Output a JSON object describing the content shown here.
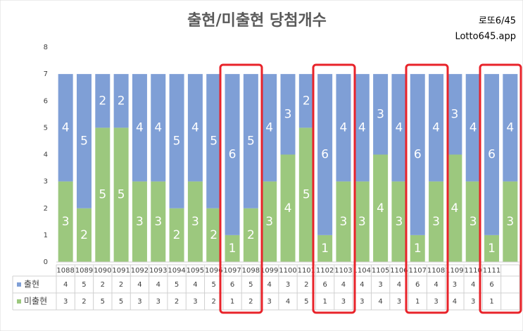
{
  "chart_data": {
    "type": "bar",
    "stacked": true,
    "title": "출현/미출현 당첨개수",
    "annotations": [
      "로또6/45",
      "Lotto645.app"
    ],
    "categories": [
      "1088",
      "1089",
      "1090",
      "1091",
      "1092",
      "1093",
      "1094",
      "1095",
      "1096",
      "1097",
      "1098",
      "1099",
      "1100",
      "1101",
      "1102",
      "1103",
      "1104",
      "1105",
      "1106",
      "1107",
      "1108",
      "1109",
      "1110",
      "1111",
      null
    ],
    "series": [
      {
        "name": "출현",
        "color": "#7f9fd6",
        "values": [
          4,
          5,
          2,
          2,
          4,
          4,
          5,
          4,
          5,
          6,
          5,
          4,
          3,
          2,
          6,
          4,
          4,
          3,
          4,
          6,
          4,
          3,
          4,
          6,
          4
        ]
      },
      {
        "name": "미출현",
        "color": "#9cc87e",
        "values": [
          3,
          2,
          5,
          5,
          3,
          3,
          2,
          3,
          2,
          1,
          2,
          3,
          4,
          5,
          1,
          3,
          3,
          4,
          3,
          1,
          3,
          4,
          3,
          1,
          3
        ]
      }
    ],
    "ylim": [
      0,
      8
    ],
    "yticks": [
      0,
      1,
      2,
      3,
      4,
      5,
      6,
      7,
      8
    ],
    "grid": false
  }
}
